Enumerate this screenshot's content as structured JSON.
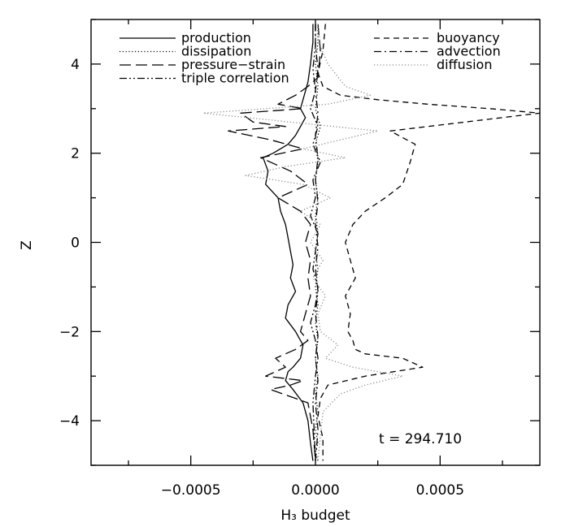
{
  "chart_data": {
    "type": "line",
    "title": "",
    "xlabel": "H₃ budget",
    "ylabel": "Z",
    "xlim": [
      -0.0009,
      0.0009
    ],
    "ylim": [
      -5,
      5
    ],
    "xticks": [
      -0.0005,
      0.0,
      0.0005
    ],
    "xtick_labels": [
      "−0.0005",
      "0.0000",
      "0.0005"
    ],
    "yticks": [
      -4,
      -2,
      0,
      2,
      4
    ],
    "ytick_labels": [
      "−4",
      "−2",
      "0",
      "2",
      "4"
    ],
    "annotation": "t = 294.710",
    "grid": false,
    "legend_left": [
      "production",
      "dissipation",
      "pressure−strain",
      "triple correlation"
    ],
    "legend_right": [
      "buoyancy",
      "advection",
      "diffusion"
    ],
    "series": [
      {
        "name": "production",
        "style": "solid",
        "color": "#000000",
        "x": [
          -1e-05,
          -1e-05,
          -2e-05,
          -3e-05,
          -5e-05,
          -6e-05,
          -4e-05,
          -6e-05,
          -8e-05,
          -0.00011,
          -0.00014,
          -0.00017,
          -0.00021,
          -0.00019,
          -0.0002,
          -0.00015,
          -0.00014,
          -0.00012,
          -0.00011,
          -0.0001,
          -9e-05,
          -0.0001,
          -8e-05,
          -0.00011,
          -0.00012,
          -8e-05,
          -5e-05,
          -6e-05,
          -9e-05,
          -0.00011,
          -0.00012,
          -9e-05,
          -5e-05,
          -3e-05,
          -2e-05,
          -1e-05
        ],
        "y": [
          4.9,
          4.5,
          4.0,
          3.6,
          3.2,
          3.0,
          2.8,
          2.6,
          2.4,
          2.2,
          2.1,
          2.0,
          1.9,
          1.6,
          1.3,
          1.0,
          0.7,
          0.4,
          0.1,
          -0.2,
          -0.5,
          -0.8,
          -1.1,
          -1.4,
          -1.7,
          -2.0,
          -2.3,
          -2.6,
          -2.8,
          -2.9,
          -3.1,
          -3.3,
          -3.6,
          -4.0,
          -4.5,
          -4.9
        ]
      },
      {
        "name": "dissipation",
        "style": "dotted",
        "color": "#000000",
        "x": [
          1e-05,
          1e-05,
          0.0,
          1e-05,
          0.0,
          2e-05,
          0.0,
          1e-05,
          0.0,
          1e-05,
          0.0,
          1e-05,
          0.0,
          1e-05,
          0.0,
          1e-05,
          0.0,
          1e-05,
          0.0,
          1e-05,
          0.0,
          1e-05,
          0.0,
          1e-05,
          0.0,
          1e-05
        ],
        "y": [
          4.9,
          4.5,
          4.0,
          3.5,
          3.0,
          2.6,
          2.2,
          1.8,
          1.4,
          1.0,
          0.6,
          0.2,
          -0.2,
          -0.6,
          -1.0,
          -1.4,
          -1.8,
          -2.2,
          -2.6,
          -3.0,
          -3.4,
          -3.8,
          -4.2,
          -4.5,
          -4.7,
          -4.9
        ]
      },
      {
        "name": "pressure−strain",
        "style": "longdash",
        "color": "#000000",
        "x": [
          1e-05,
          2e-05,
          1e-05,
          -3e-05,
          -8e-05,
          -0.00015,
          -5e-05,
          -0.0003,
          -0.00025,
          -0.00012,
          -0.00035,
          -0.00018,
          -5e-05,
          -0.00022,
          -0.0001,
          -3e-05,
          -0.00015,
          -6e-05,
          -2e-05,
          -4e-05,
          -2e-05,
          -3e-05,
          -2e-05,
          -4e-05,
          -6e-05,
          -3e-05,
          -8e-05,
          -0.00016,
          -0.00012,
          -0.0002,
          -5e-05,
          -0.0001,
          -0.00018,
          -3e-05,
          -1e-05,
          0.0
        ],
        "y": [
          4.9,
          4.3,
          3.7,
          3.5,
          3.3,
          3.1,
          3.0,
          2.9,
          2.7,
          2.6,
          2.5,
          2.3,
          2.1,
          1.9,
          1.6,
          1.3,
          1.0,
          0.7,
          0.4,
          0.0,
          -0.4,
          -0.8,
          -1.2,
          -1.6,
          -2.0,
          -2.2,
          -2.4,
          -2.6,
          -2.8,
          -3.0,
          -3.1,
          -3.2,
          -3.3,
          -3.6,
          -4.2,
          -4.9
        ]
      },
      {
        "name": "triple correlation",
        "style": "dashdotdot",
        "color": "#000000",
        "x": [
          0.0,
          0.0,
          -1e-05,
          0.0,
          -2e-05,
          1e-05,
          -1e-05,
          2e-05,
          -1e-05,
          0.0,
          -2e-05,
          1e-05,
          0.0,
          -1e-05,
          1e-05,
          0.0,
          -2e-05,
          0.0,
          1e-05,
          0.0,
          -1e-05,
          0.0
        ],
        "y": [
          4.9,
          4.4,
          3.9,
          3.4,
          3.0,
          2.6,
          2.2,
          1.8,
          1.4,
          1.0,
          0.6,
          0.2,
          -0.2,
          -0.6,
          -1.0,
          -1.4,
          -1.8,
          -2.2,
          -2.6,
          -3.0,
          -3.6,
          -4.9
        ]
      },
      {
        "name": "buoyancy",
        "style": "dash",
        "color": "#000000",
        "x": [
          4e-05,
          3e-05,
          1e-05,
          3e-05,
          0.0001,
          0.00025,
          0.00045,
          0.0007,
          0.0009,
          0.0006,
          0.0003,
          0.0004,
          0.00038,
          0.00035,
          0.00028,
          0.0002,
          0.00015,
          0.00012,
          0.00014,
          0.00016,
          0.00012,
          0.00014,
          0.00013,
          0.00015,
          0.00016,
          0.0002,
          0.00035,
          0.00043,
          0.0002,
          5e-05,
          2e-05,
          1e-05,
          3e-05,
          3e-05
        ],
        "y": [
          4.9,
          4.3,
          3.8,
          3.5,
          3.3,
          3.2,
          3.1,
          3.0,
          2.9,
          2.7,
          2.5,
          2.2,
          1.8,
          1.3,
          1.0,
          0.7,
          0.4,
          0.0,
          -0.4,
          -0.8,
          -1.2,
          -1.6,
          -2.0,
          -2.2,
          -2.4,
          -2.5,
          -2.6,
          -2.8,
          -3.0,
          -3.2,
          -3.5,
          -3.9,
          -4.4,
          -4.9
        ]
      },
      {
        "name": "advection",
        "style": "dashdot",
        "color": "#000000",
        "x": [
          0.0,
          0.0,
          1e-05,
          0.0,
          1e-05,
          0.0,
          1e-05,
          0.0,
          1e-05,
          0.0,
          1e-05,
          0.0,
          1e-05,
          0.0,
          1e-05,
          0.0,
          1e-05,
          0.0,
          1e-05,
          0.0
        ],
        "y": [
          4.9,
          4.4,
          3.9,
          3.4,
          2.9,
          2.4,
          1.9,
          1.4,
          0.9,
          0.4,
          -0.1,
          -0.6,
          -1.1,
          -1.6,
          -2.1,
          -2.6,
          -3.1,
          -3.6,
          -4.2,
          -4.9
        ]
      },
      {
        "name": "diffusion",
        "style": "dotted",
        "color": "#8c8c8c",
        "x": [
          1e-05,
          2e-05,
          5e-05,
          0.00012,
          0.00022,
          5e-05,
          -0.0002,
          -0.00045,
          -0.0001,
          0.00025,
          0.0001,
          -5e-05,
          0.00012,
          -0.00012,
          -0.00028,
          -5e-05,
          6e-05,
          -6e-05,
          2e-05,
          -2e-05,
          3e-05,
          -1e-05,
          4e-05,
          1e-05,
          2e-05,
          9e-05,
          4e-05,
          0.00015,
          0.00035,
          0.0002,
          0.0001,
          3e-05,
          1e-05
        ],
        "y": [
          4.9,
          4.4,
          4.0,
          3.5,
          3.3,
          3.1,
          3.0,
          2.9,
          2.7,
          2.5,
          2.3,
          2.1,
          1.9,
          1.7,
          1.5,
          1.3,
          1.0,
          0.7,
          0.4,
          0.0,
          -0.4,
          -0.8,
          -1.2,
          -1.6,
          -2.0,
          -2.3,
          -2.6,
          -2.8,
          -3.0,
          -3.2,
          -3.4,
          -3.8,
          -4.9
        ]
      }
    ]
  }
}
